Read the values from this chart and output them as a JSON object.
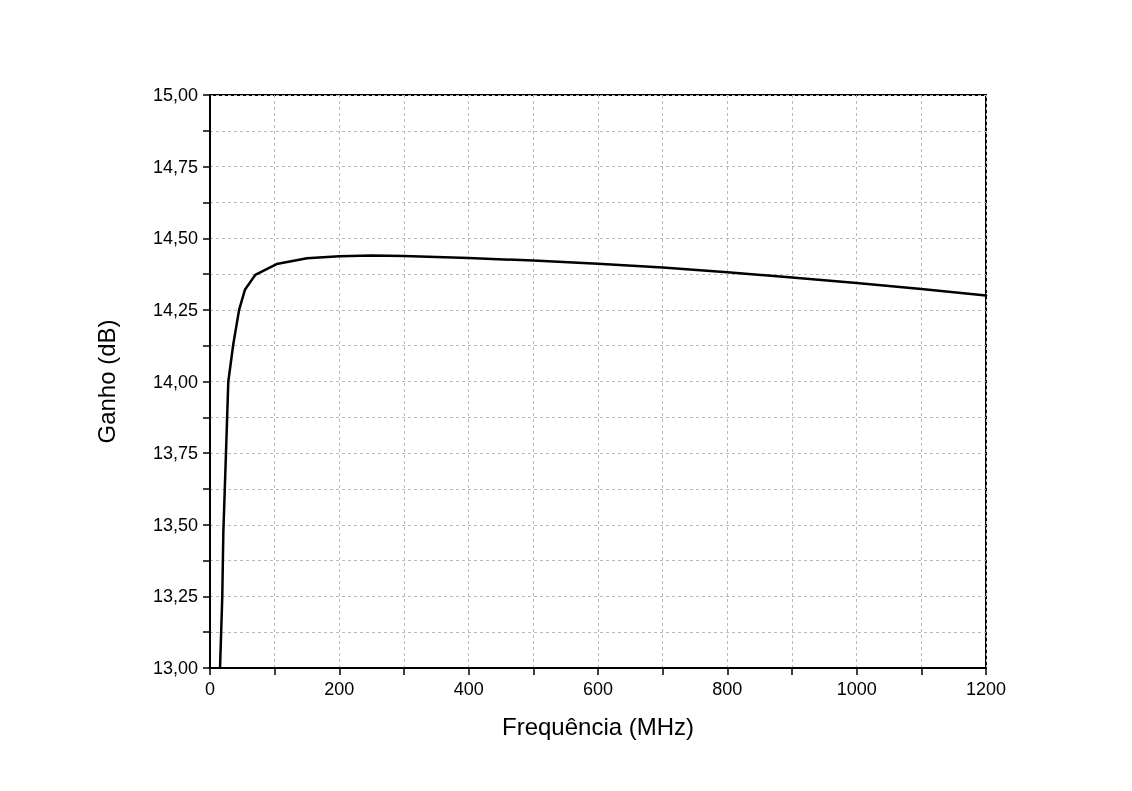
{
  "chart_data": {
    "type": "line",
    "xlabel": "Frequência (MHz)",
    "ylabel": "Ganho (dB)",
    "x": [
      15.5,
      19,
      20.6,
      24.7,
      28.3,
      36,
      45,
      54,
      70,
      103,
      150,
      200,
      250,
      300,
      400,
      500,
      600,
      700,
      800,
      900,
      1000,
      1100,
      1200
    ],
    "series": [
      {
        "color": "#000000",
        "values": [
          13.0,
          13.25,
          13.47,
          13.75,
          14.0,
          14.13,
          14.25,
          14.32,
          14.372,
          14.41,
          14.43,
          14.437,
          14.44,
          14.438,
          14.431,
          14.422,
          14.411,
          14.398,
          14.381,
          14.363,
          14.344,
          14.323,
          14.3
        ]
      }
    ],
    "xlim": [
      0,
      1200
    ],
    "ylim": [
      13,
      15
    ],
    "xticks": [
      0,
      {
        "value": 100,
        "label": null
      },
      200,
      {
        "value": 300,
        "label": null
      },
      400,
      {
        "value": 500,
        "label": null
      },
      600,
      {
        "value": 700,
        "label": null
      },
      800,
      {
        "value": 900,
        "label": null
      },
      1000,
      {
        "value": 1100,
        "label": null
      },
      1200
    ],
    "yticks": [
      {
        "value": 13,
        "label": "13,00"
      },
      {
        "value": 13.125,
        "label": null
      },
      {
        "value": 13.25,
        "label": "13,25"
      },
      {
        "value": 13.375,
        "label": null
      },
      {
        "value": 13.5,
        "label": "13,50"
      },
      {
        "value": 13.625,
        "label": null
      },
      {
        "value": 13.75,
        "label": "13,75"
      },
      {
        "value": 13.875,
        "label": null
      },
      {
        "value": 14,
        "label": "14,00"
      },
      {
        "value": 14.125,
        "label": null
      },
      {
        "value": 14.25,
        "label": "14,25"
      },
      {
        "value": 14.375,
        "label": null
      },
      {
        "value": 14.5,
        "label": "14,50"
      },
      {
        "value": 14.625,
        "label": null
      },
      {
        "value": 14.75,
        "label": "14,75"
      },
      {
        "value": 14.875,
        "label": null
      },
      {
        "value": 15,
        "label": "15,00"
      }
    ],
    "grid": true,
    "marker": "none",
    "line_style": "solid"
  }
}
